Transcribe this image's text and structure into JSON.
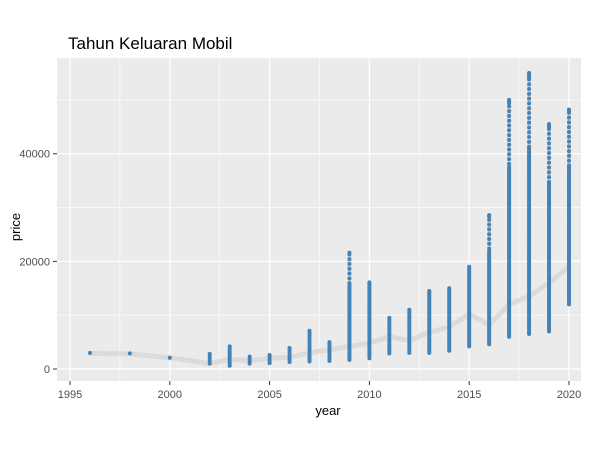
{
  "chart_data": {
    "type": "scatter",
    "title": "Tahun Keluaran Mobil",
    "xlabel": "year",
    "ylabel": "price",
    "xlim": [
      1995,
      2020
    ],
    "ylim": [
      0,
      55000
    ],
    "x_ticks": [
      1995,
      2000,
      2005,
      2010,
      2015,
      2020
    ],
    "x_tick_labels": [
      "1995",
      "2000",
      "2005",
      "2010",
      "2015",
      "2020"
    ],
    "y_ticks": [
      0,
      20000,
      40000
    ],
    "y_tick_labels": [
      "0",
      "20000",
      "40000"
    ],
    "grid": true,
    "point_color": "#4682b4",
    "range_color": "#d3d3d3",
    "trend_color": "#d9d9d9",
    "panel_color": "#ebebeb",
    "years": [
      1996,
      1998,
      2000,
      2002,
      2003,
      2004,
      2005,
      2006,
      2007,
      2008,
      2009,
      2010,
      2011,
      2012,
      2013,
      2014,
      2015,
      2016,
      2017,
      2018,
      2019,
      2020
    ],
    "min_price": [
      3000,
      2900,
      2100,
      1000,
      600,
      1000,
      1100,
      1300,
      1400,
      1500,
      1700,
      2000,
      2900,
      3000,
      3000,
      3400,
      4200,
      4600,
      6000,
      6500,
      7000,
      12000
    ],
    "max_price": [
      3000,
      2900,
      2100,
      2800,
      4200,
      2300,
      2600,
      3900,
      7100,
      5000,
      21600,
      16100,
      9500,
      11000,
      14500,
      15000,
      19000,
      28600,
      50000,
      55000,
      45500,
      48200
    ],
    "trend_price": [
      2900,
      2800,
      2100,
      1000,
      1800,
      1500,
      2000,
      2200,
      3000,
      3600,
      4200,
      4800,
      6000,
      5300,
      6800,
      7800,
      10200,
      8200,
      12000,
      13500,
      16000,
      19000
    ]
  }
}
